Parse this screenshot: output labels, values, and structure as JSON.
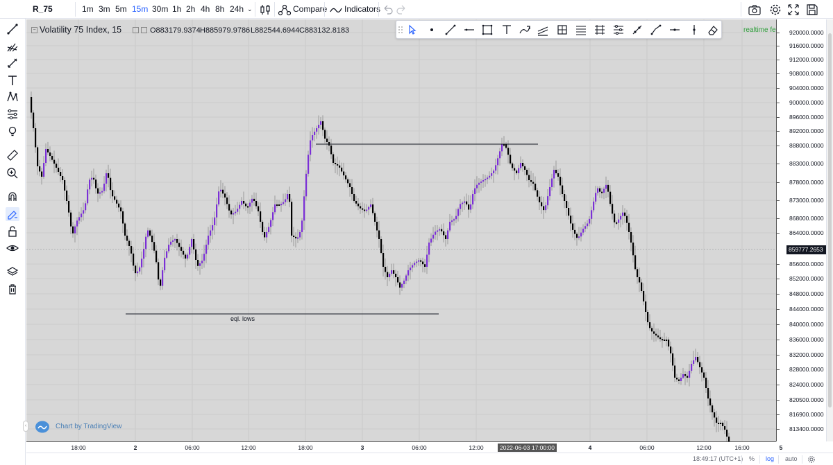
{
  "topbar": {
    "symbol": "R_75",
    "intervals": [
      "1m",
      "3m",
      "5m",
      "15m",
      "30m",
      "1h",
      "2h",
      "4h",
      "8h",
      "24h"
    ],
    "active_interval": "15m",
    "compare_label": "Compare",
    "indicators_label": "Indicators",
    "icons": [
      "candles-icon",
      "compare-icon",
      "indicators-icon",
      "undo-icon",
      "redo-icon",
      "camera-icon",
      "settings-icon",
      "fullscreen-icon",
      "save-icon"
    ]
  },
  "legend": {
    "title": "Volatility 75 Index, 15",
    "open": "O883179.9374",
    "high": "H885979.9786",
    "low": "L882544.6944",
    "close": "C883132.8183"
  },
  "realtime_label": "realtime feed",
  "annotation_label": "eql. lows",
  "watermark_label": "Chart by TradingView",
  "price_axis": {
    "labels": [
      "920000.0000",
      "916000.0000",
      "912000.0000",
      "908000.0000",
      "904000.0000",
      "900000.0000",
      "896000.0000",
      "892000.0000",
      "888000.0000",
      "883000.0000",
      "878000.0000",
      "873000.0000",
      "868000.0000",
      "864000.0000",
      "856000.0000",
      "852000.0000",
      "848000.0000",
      "844000.0000",
      "840000.0000",
      "836000.0000",
      "832000.0000",
      "828000.0000",
      "824000.0000",
      "820500.0000",
      "816900.0000",
      "813400.0000"
    ],
    "current_price": "859777.2653"
  },
  "time_axis": {
    "labels": [
      "18:00",
      "2",
      "06:00",
      "12:00",
      "18:00",
      "3",
      "06:00",
      "12:00",
      "4",
      "06:00",
      "12:00",
      "16:00",
      "5"
    ],
    "crosshair": "2022-06-03 17:00:00"
  },
  "statusbar": {
    "time": "18:49:17 (UTC+1)",
    "percent": "%",
    "log": "log",
    "auto": "auto"
  },
  "colors": {
    "chart_bg": "#d7d7d7",
    "bull": "#7b2fd6",
    "bear": "#000000",
    "accent": "#2962ff"
  }
}
